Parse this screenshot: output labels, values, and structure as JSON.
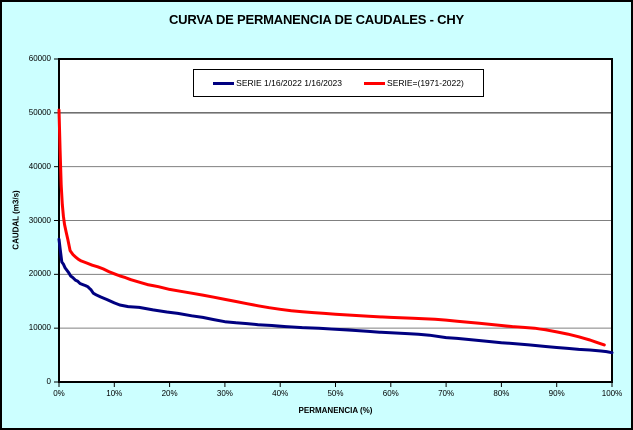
{
  "window": {
    "background_color": "#CCFFFF",
    "border_color": "#000000",
    "plot_background_color": "#FFFFFF"
  },
  "chart_data": {
    "type": "line",
    "title": "CURVA DE PERMANENCIA DE CAUDALES - CHY",
    "xlabel": "PERMANENCIA (%)",
    "ylabel": "CAUDAL (m3/s)",
    "xlim": [
      0,
      100
    ],
    "ylim": [
      0,
      60000
    ],
    "grid": "horizontal",
    "grid_color": "#808080",
    "grid_color_dark": "#1a1a1a",
    "legend_position": "top-center-inside",
    "xticks": [
      {
        "value": 0,
        "label": "0%"
      },
      {
        "value": 10,
        "label": "10%"
      },
      {
        "value": 20,
        "label": "20%"
      },
      {
        "value": 30,
        "label": "30%"
      },
      {
        "value": 40,
        "label": "40%"
      },
      {
        "value": 50,
        "label": "50%"
      },
      {
        "value": 60,
        "label": "60%"
      },
      {
        "value": 70,
        "label": "70%"
      },
      {
        "value": 80,
        "label": "80%"
      },
      {
        "value": 90,
        "label": "90%"
      },
      {
        "value": 100,
        "label": "100%"
      }
    ],
    "yticks": [
      {
        "value": 0,
        "label": "0",
        "grid": "none"
      },
      {
        "value": 10000,
        "label": "10000",
        "grid": "normal"
      },
      {
        "value": 20000,
        "label": "20000",
        "grid": "normal"
      },
      {
        "value": 30000,
        "label": "30000",
        "grid": "normal"
      },
      {
        "value": 40000,
        "label": "40000",
        "grid": "normal"
      },
      {
        "value": 50000,
        "label": "50000",
        "grid": "dark"
      },
      {
        "value": 60000,
        "label": "60000",
        "grid": "none"
      }
    ],
    "series": [
      {
        "name": "SERIE 1/16/2022 1/16/2023",
        "color": "#000080",
        "points": [
          [
            0,
            26500
          ],
          [
            0.2,
            24800
          ],
          [
            0.5,
            22300
          ],
          [
            0.8,
            21900
          ],
          [
            1.1,
            21200
          ],
          [
            1.4,
            20800
          ],
          [
            1.75,
            20300
          ],
          [
            2.1,
            19700
          ],
          [
            2.5,
            19400
          ],
          [
            3,
            18900
          ],
          [
            3.4,
            18700
          ],
          [
            3.8,
            18300
          ],
          [
            4.3,
            18100
          ],
          [
            4.8,
            17900
          ],
          [
            5.2,
            17700
          ],
          [
            5.5,
            17400
          ],
          [
            5.8,
            17100
          ],
          [
            6.2,
            16500
          ],
          [
            6.7,
            16200
          ],
          [
            7.5,
            15800
          ],
          [
            8.7,
            15300
          ],
          [
            10,
            14700
          ],
          [
            11,
            14300
          ],
          [
            12.5,
            14000
          ],
          [
            14.5,
            13850
          ],
          [
            17,
            13400
          ],
          [
            19.5,
            13000
          ],
          [
            21.5,
            12750
          ],
          [
            24,
            12300
          ],
          [
            26,
            12000
          ],
          [
            28,
            11600
          ],
          [
            30,
            11200
          ],
          [
            32,
            11000
          ],
          [
            34,
            10850
          ],
          [
            36,
            10650
          ],
          [
            38.5,
            10500
          ],
          [
            41,
            10300
          ],
          [
            44,
            10100
          ],
          [
            47,
            10000
          ],
          [
            50,
            9800
          ],
          [
            53,
            9600
          ],
          [
            56,
            9400
          ],
          [
            58,
            9250
          ],
          [
            60,
            9150
          ],
          [
            63,
            9000
          ],
          [
            65,
            8880
          ],
          [
            67,
            8700
          ],
          [
            70,
            8250
          ],
          [
            72,
            8100
          ],
          [
            75,
            7800
          ],
          [
            78,
            7500
          ],
          [
            80,
            7300
          ],
          [
            82,
            7150
          ],
          [
            85,
            6900
          ],
          [
            88,
            6600
          ],
          [
            90,
            6400
          ],
          [
            92,
            6250
          ],
          [
            94,
            6050
          ],
          [
            96,
            5950
          ],
          [
            98,
            5750
          ],
          [
            99,
            5650
          ],
          [
            100,
            5450
          ]
        ]
      },
      {
        "name": "SERIE=(1971-2022)",
        "color": "#FF0000",
        "points": [
          [
            0,
            50500
          ],
          [
            0.2,
            43000
          ],
          [
            0.4,
            36500
          ],
          [
            0.6,
            33000
          ],
          [
            0.8,
            30800
          ],
          [
            1,
            29300
          ],
          [
            1.3,
            27800
          ],
          [
            1.6,
            26500
          ],
          [
            2,
            24400
          ],
          [
            2.5,
            23700
          ],
          [
            3,
            23200
          ],
          [
            3.5,
            22800
          ],
          [
            4,
            22500
          ],
          [
            5,
            22100
          ],
          [
            6,
            21700
          ],
          [
            7,
            21400
          ],
          [
            8,
            21000
          ],
          [
            9,
            20500
          ],
          [
            10,
            20100
          ],
          [
            11,
            19700
          ],
          [
            12,
            19400
          ],
          [
            13,
            19000
          ],
          [
            14,
            18700
          ],
          [
            15,
            18400
          ],
          [
            16,
            18100
          ],
          [
            17,
            17900
          ],
          [
            18,
            17700
          ],
          [
            20,
            17200
          ],
          [
            22,
            16850
          ],
          [
            24,
            16500
          ],
          [
            26,
            16150
          ],
          [
            28,
            15750
          ],
          [
            30,
            15350
          ],
          [
            32,
            14950
          ],
          [
            34,
            14550
          ],
          [
            36,
            14150
          ],
          [
            38,
            13800
          ],
          [
            40,
            13500
          ],
          [
            42,
            13250
          ],
          [
            44,
            13050
          ],
          [
            46,
            12900
          ],
          [
            48,
            12750
          ],
          [
            50,
            12600
          ],
          [
            53,
            12400
          ],
          [
            56,
            12200
          ],
          [
            60,
            12000
          ],
          [
            64,
            11850
          ],
          [
            68,
            11650
          ],
          [
            70,
            11500
          ],
          [
            72,
            11300
          ],
          [
            74,
            11100
          ],
          [
            76,
            10900
          ],
          [
            78,
            10700
          ],
          [
            80,
            10500
          ],
          [
            82,
            10300
          ],
          [
            84,
            10150
          ],
          [
            86,
            10000
          ],
          [
            88,
            9700
          ],
          [
            90,
            9300
          ],
          [
            92,
            8900
          ],
          [
            94,
            8400
          ],
          [
            95,
            8100
          ],
          [
            96,
            7800
          ],
          [
            97,
            7450
          ],
          [
            98,
            7100
          ],
          [
            98.6,
            6900
          ]
        ]
      }
    ]
  }
}
